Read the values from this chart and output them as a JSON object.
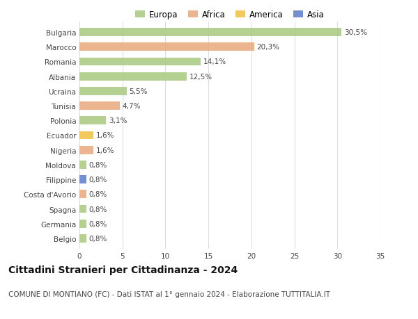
{
  "countries": [
    "Bulgaria",
    "Marocco",
    "Romania",
    "Albania",
    "Ucraina",
    "Tunisia",
    "Polonia",
    "Ecuador",
    "Nigeria",
    "Moldova",
    "Filippine",
    "Costa d'Avorio",
    "Spagna",
    "Germania",
    "Belgio"
  ],
  "values": [
    30.5,
    20.3,
    14.1,
    12.5,
    5.5,
    4.7,
    3.1,
    1.6,
    1.6,
    0.8,
    0.8,
    0.8,
    0.8,
    0.8,
    0.8
  ],
  "labels": [
    "30,5%",
    "20,3%",
    "14,1%",
    "12,5%",
    "5,5%",
    "4,7%",
    "3,1%",
    "1,6%",
    "1,6%",
    "0,8%",
    "0,8%",
    "0,8%",
    "0,8%",
    "0,8%",
    "0,8%"
  ],
  "continents": [
    "Europa",
    "Africa",
    "Europa",
    "Europa",
    "Europa",
    "Africa",
    "Europa",
    "America",
    "Africa",
    "Europa",
    "Asia",
    "Africa",
    "Europa",
    "Europa",
    "Europa"
  ],
  "continent_colors": {
    "Europa": "#a8c97f",
    "Africa": "#e8a87c",
    "America": "#f0c040",
    "Asia": "#5b7ec9"
  },
  "legend_order": [
    "Europa",
    "Africa",
    "America",
    "Asia"
  ],
  "title": "Cittadini Stranieri per Cittadinanza - 2024",
  "subtitle": "COMUNE DI MONTIANO (FC) - Dati ISTAT al 1° gennaio 2024 - Elaborazione TUTTITALIA.IT",
  "xlim": [
    0,
    35
  ],
  "xticks": [
    0,
    5,
    10,
    15,
    20,
    25,
    30,
    35
  ],
  "background_color": "#ffffff",
  "grid_color": "#dddddd",
  "bar_height": 0.55,
  "title_fontsize": 10,
  "subtitle_fontsize": 7.5,
  "label_fontsize": 7.5,
  "tick_fontsize": 7.5,
  "legend_fontsize": 8.5
}
